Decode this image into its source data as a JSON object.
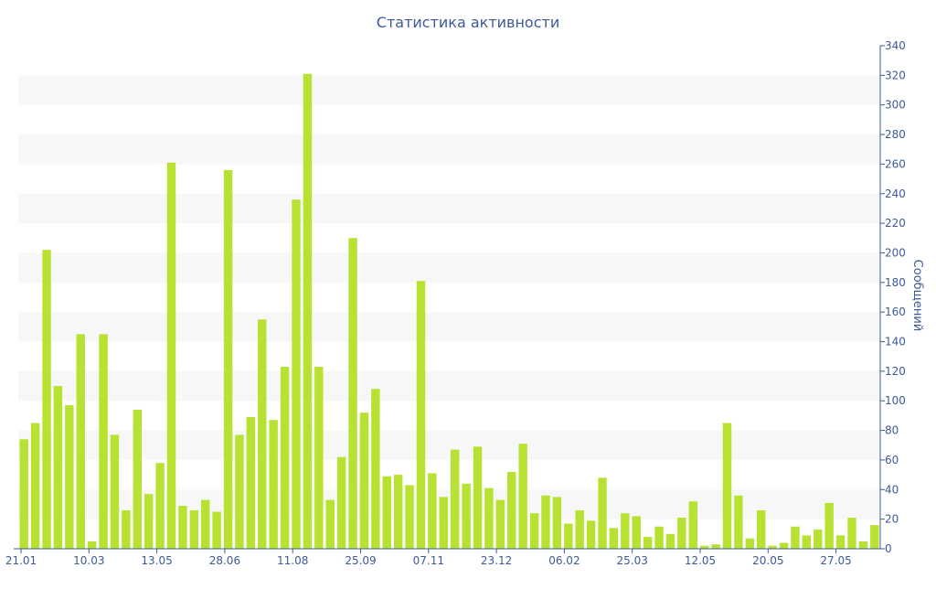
{
  "chart_data": {
    "type": "bar",
    "title": "Статистика активности",
    "xlabel": "",
    "ylabel": "Сообщений",
    "ylim": [
      0,
      340
    ],
    "y_ticks": [
      0,
      20,
      40,
      60,
      80,
      100,
      120,
      140,
      160,
      180,
      200,
      220,
      240,
      260,
      280,
      300,
      320,
      340
    ],
    "y_axis_side": "right",
    "x_tick_labels": [
      "21.01",
      "10.03",
      "13.05",
      "28.06",
      "11.08",
      "25.09",
      "07.11",
      "23.12",
      "06.02",
      "25.03",
      "12.05",
      "20.05",
      "27.05"
    ],
    "grid": "horizontal alternating bands",
    "legend": "none",
    "series": [
      {
        "values": [
          74,
          85,
          202,
          110,
          97,
          145,
          5,
          145,
          77,
          26,
          94,
          37,
          58,
          261,
          29,
          26,
          33,
          25,
          256,
          77,
          89,
          155,
          87,
          123,
          236,
          321,
          123,
          33,
          62,
          210,
          92,
          108,
          49,
          50,
          43,
          181,
          51,
          35,
          67,
          44,
          69,
          41,
          33,
          52,
          71,
          24,
          36,
          35,
          17,
          26,
          19,
          48,
          14,
          24,
          22,
          8,
          15,
          10,
          21,
          32,
          2,
          3,
          85,
          36,
          7,
          26,
          2,
          4,
          15,
          9,
          13,
          31,
          9,
          21,
          5,
          16
        ]
      }
    ],
    "colors": {
      "bar": "#b8e232",
      "text": "#3d5a98",
      "band": "#f7f7f7",
      "axis": "#3d5a98"
    }
  }
}
